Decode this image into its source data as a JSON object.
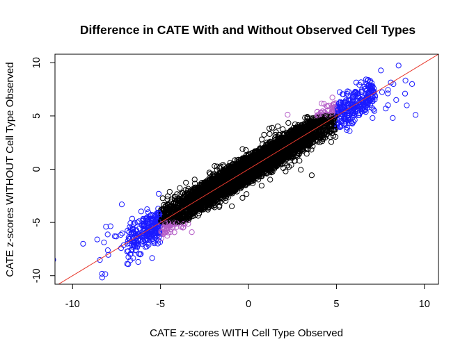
{
  "chart_data": {
    "type": "scatter",
    "title": "Difference in CATE With and Without Observed Cell Types",
    "xlabel": "CATE z-scores WITH Cell Type Observed",
    "ylabel": "CATE z-scores WITHOUT Cell Type Observed",
    "xlim": [
      -11,
      10.8
    ],
    "ylim": [
      -10.8,
      10.8
    ],
    "xticks": [
      -10,
      -5,
      0,
      5,
      10
    ],
    "yticks": [
      -10,
      -5,
      0,
      5,
      10
    ],
    "grid": false,
    "legend": "none",
    "reference_line": {
      "slope": 1,
      "intercept": 0,
      "color": "#e8392d"
    },
    "point_style": "open-circle",
    "colors": {
      "default": "#000000",
      "x_beyond_5": "#1a1aff",
      "y_beyond_5": "#b45cc7"
    },
    "band": {
      "x_from": -6.9,
      "x_to": 7.2,
      "half_width_y": 1.5
    },
    "outliers": [
      {
        "x": -11.1,
        "y": -8.5
      },
      {
        "x": -9.4,
        "y": -7.0
      },
      {
        "x": -8.6,
        "y": -6.6
      },
      {
        "x": -8.1,
        "y": -5.4
      },
      {
        "x": -7.6,
        "y": -6.3
      },
      {
        "x": -7.2,
        "y": -3.3
      },
      {
        "x": 7.0,
        "y": 8.1
      },
      {
        "x": 7.8,
        "y": 5.7
      },
      {
        "x": 8.4,
        "y": 6.5
      },
      {
        "x": 8.9,
        "y": 7.1
      },
      {
        "x": 9.3,
        "y": 8.0
      },
      {
        "x": 9.5,
        "y": 5.1
      },
      {
        "x": 9.0,
        "y": 6.0
      },
      {
        "x": 8.2,
        "y": 4.8
      }
    ]
  }
}
